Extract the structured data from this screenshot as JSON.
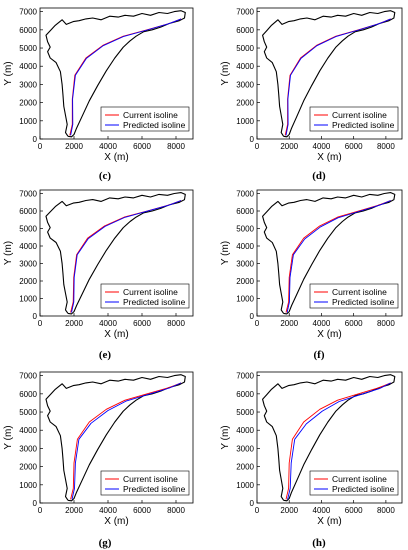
{
  "figure": {
    "panels": [
      {
        "label": "(c)"
      },
      {
        "label": "(d)"
      },
      {
        "label": "(e)"
      },
      {
        "label": "(f)"
      },
      {
        "label": "(g)"
      },
      {
        "label": "(h)"
      }
    ]
  },
  "chart_data": [
    {
      "type": "line",
      "panel_label": "(c)",
      "xlabel": "X (m)",
      "ylabel": "Y (m)",
      "xlim": [
        0,
        9000
      ],
      "ylim": [
        0,
        7200
      ],
      "xticks": [
        "0",
        "2000",
        "4000",
        "6000",
        "8000"
      ],
      "yticks": [
        "0",
        "1000",
        "2000",
        "3000",
        "4000",
        "5000",
        "6000",
        "7000"
      ],
      "grid": false,
      "legend_position": "lower-right",
      "colors": {
        "boundary": "#000000",
        "current": "#ff0000",
        "predicted": "#0000ff"
      },
      "series": [
        {
          "name": "Current isoline",
          "x": [
            1750,
            1900,
            1900,
            2050,
            2700,
            3700,
            4900,
            6300,
            7600,
            8300
          ],
          "y": [
            200,
            800,
            2200,
            3500,
            4450,
            5150,
            5650,
            6000,
            6350,
            6600
          ]
        },
        {
          "name": "Predicted isoline",
          "x": [
            1800,
            1930,
            1920,
            2080,
            2730,
            3720,
            4900,
            6300,
            7600,
            8300
          ],
          "y": [
            200,
            800,
            2200,
            3500,
            4430,
            5130,
            5630,
            5990,
            6340,
            6600
          ]
        }
      ]
    },
    {
      "type": "line",
      "panel_label": "(d)",
      "xlabel": "X (m)",
      "ylabel": "Y (m)",
      "xlim": [
        0,
        9000
      ],
      "ylim": [
        0,
        7200
      ],
      "xticks": [
        "0",
        "2000",
        "4000",
        "6000",
        "8000"
      ],
      "yticks": [
        "0",
        "1000",
        "2000",
        "3000",
        "4000",
        "5000",
        "6000",
        "7000"
      ],
      "grid": false,
      "legend_position": "lower-right",
      "colors": {
        "boundary": "#000000",
        "current": "#ff0000",
        "predicted": "#0000ff"
      },
      "series": [
        {
          "name": "Current isoline",
          "x": [
            1750,
            1900,
            1900,
            2050,
            2700,
            3700,
            4900,
            6300,
            7600,
            8300
          ],
          "y": [
            200,
            800,
            2200,
            3500,
            4450,
            5150,
            5650,
            6000,
            6350,
            6600
          ]
        },
        {
          "name": "Predicted isoline",
          "x": [
            1800,
            1930,
            1920,
            2080,
            2730,
            3720,
            4900,
            6300,
            7600,
            8300
          ],
          "y": [
            200,
            800,
            2200,
            3500,
            4430,
            5130,
            5630,
            5990,
            6340,
            6600
          ]
        }
      ]
    },
    {
      "type": "line",
      "panel_label": "(e)",
      "xlabel": "X (m)",
      "ylabel": "Y (m)",
      "xlim": [
        0,
        9000
      ],
      "ylim": [
        0,
        7200
      ],
      "xticks": [
        "0",
        "2000",
        "4000",
        "6000",
        "8000"
      ],
      "yticks": [
        "0",
        "1000",
        "2000",
        "3000",
        "4000",
        "5000",
        "6000",
        "7000"
      ],
      "grid": false,
      "legend_position": "lower-right",
      "colors": {
        "boundary": "#000000",
        "current": "#ff0000",
        "predicted": "#0000ff"
      },
      "series": [
        {
          "name": "Current isoline",
          "x": [
            1800,
            1950,
            1980,
            2150,
            2800,
            3800,
            4950,
            6300,
            7600,
            8300
          ],
          "y": [
            200,
            800,
            2200,
            3500,
            4450,
            5150,
            5650,
            6000,
            6350,
            6600
          ]
        },
        {
          "name": "Predicted isoline",
          "x": [
            1850,
            1990,
            2010,
            2190,
            2840,
            3830,
            4970,
            6300,
            7600,
            8300
          ],
          "y": [
            200,
            800,
            2200,
            3500,
            4420,
            5120,
            5630,
            5990,
            6340,
            6600
          ]
        }
      ]
    },
    {
      "type": "line",
      "panel_label": "(f)",
      "xlabel": "X (m)",
      "ylabel": "Y (m)",
      "xlim": [
        0,
        9000
      ],
      "ylim": [
        0,
        7200
      ],
      "xticks": [
        "0",
        "2000",
        "4000",
        "6000",
        "8000"
      ],
      "yticks": [
        "0",
        "1000",
        "2000",
        "3000",
        "4000",
        "5000",
        "6000",
        "7000"
      ],
      "grid": false,
      "legend_position": "lower-right",
      "colors": {
        "boundary": "#000000",
        "current": "#ff0000",
        "predicted": "#0000ff"
      },
      "series": [
        {
          "name": "Current isoline",
          "x": [
            1800,
            1960,
            2000,
            2200,
            2900,
            3900,
            5000,
            6300,
            7600,
            8300
          ],
          "y": [
            200,
            800,
            2200,
            3500,
            4450,
            5150,
            5650,
            6000,
            6350,
            6600
          ]
        },
        {
          "name": "Predicted isoline",
          "x": [
            1870,
            2010,
            2050,
            2260,
            2960,
            3950,
            5030,
            6320,
            7610,
            8300
          ],
          "y": [
            200,
            800,
            2200,
            3500,
            4400,
            5100,
            5610,
            5970,
            6330,
            6600
          ]
        }
      ]
    },
    {
      "type": "line",
      "panel_label": "(g)",
      "xlabel": "X (m)",
      "ylabel": "Y (m)",
      "xlim": [
        0,
        9000
      ],
      "ylim": [
        0,
        7200
      ],
      "xticks": [
        "0",
        "2000",
        "4000",
        "6000",
        "8000"
      ],
      "yticks": [
        "0",
        "1000",
        "2000",
        "3000",
        "4000",
        "5000",
        "6000",
        "7000"
      ],
      "grid": false,
      "legend_position": "lower-right",
      "colors": {
        "boundary": "#000000",
        "current": "#ff0000",
        "predicted": "#0000ff"
      },
      "series": [
        {
          "name": "Current isoline",
          "x": [
            1800,
            1960,
            2000,
            2200,
            2900,
            3900,
            5000,
            6300,
            7600,
            8300
          ],
          "y": [
            200,
            800,
            2200,
            3500,
            4450,
            5150,
            5650,
            6000,
            6350,
            6600
          ]
        },
        {
          "name": "Predicted isoline",
          "x": [
            1880,
            2030,
            2080,
            2290,
            3000,
            3990,
            5060,
            6340,
            7620,
            8300
          ],
          "y": [
            200,
            800,
            2200,
            3500,
            4380,
            5080,
            5600,
            5960,
            6320,
            6600
          ]
        }
      ]
    },
    {
      "type": "line",
      "panel_label": "(h)",
      "xlabel": "X (m)",
      "ylabel": "Y (m)",
      "xlim": [
        0,
        9000
      ],
      "ylim": [
        0,
        7200
      ],
      "xticks": [
        "0",
        "2000",
        "4000",
        "6000",
        "8000"
      ],
      "yticks": [
        "0",
        "1000",
        "2000",
        "3000",
        "4000",
        "5000",
        "6000",
        "7000"
      ],
      "grid": false,
      "legend_position": "lower-right",
      "colors": {
        "boundary": "#000000",
        "current": "#ff0000",
        "predicted": "#0000ff"
      },
      "series": [
        {
          "name": "Current isoline",
          "x": [
            1800,
            1960,
            2000,
            2200,
            2900,
            3900,
            5000,
            6300,
            7600,
            8300
          ],
          "y": [
            200,
            800,
            2200,
            3500,
            4450,
            5150,
            5650,
            6000,
            6350,
            6600
          ]
        },
        {
          "name": "Predicted isoline",
          "x": [
            1900,
            2060,
            2120,
            2340,
            3060,
            4050,
            5100,
            6360,
            7630,
            8300
          ],
          "y": [
            200,
            800,
            2200,
            3500,
            4350,
            5050,
            5580,
            5940,
            6300,
            6600
          ]
        }
      ]
    }
  ]
}
